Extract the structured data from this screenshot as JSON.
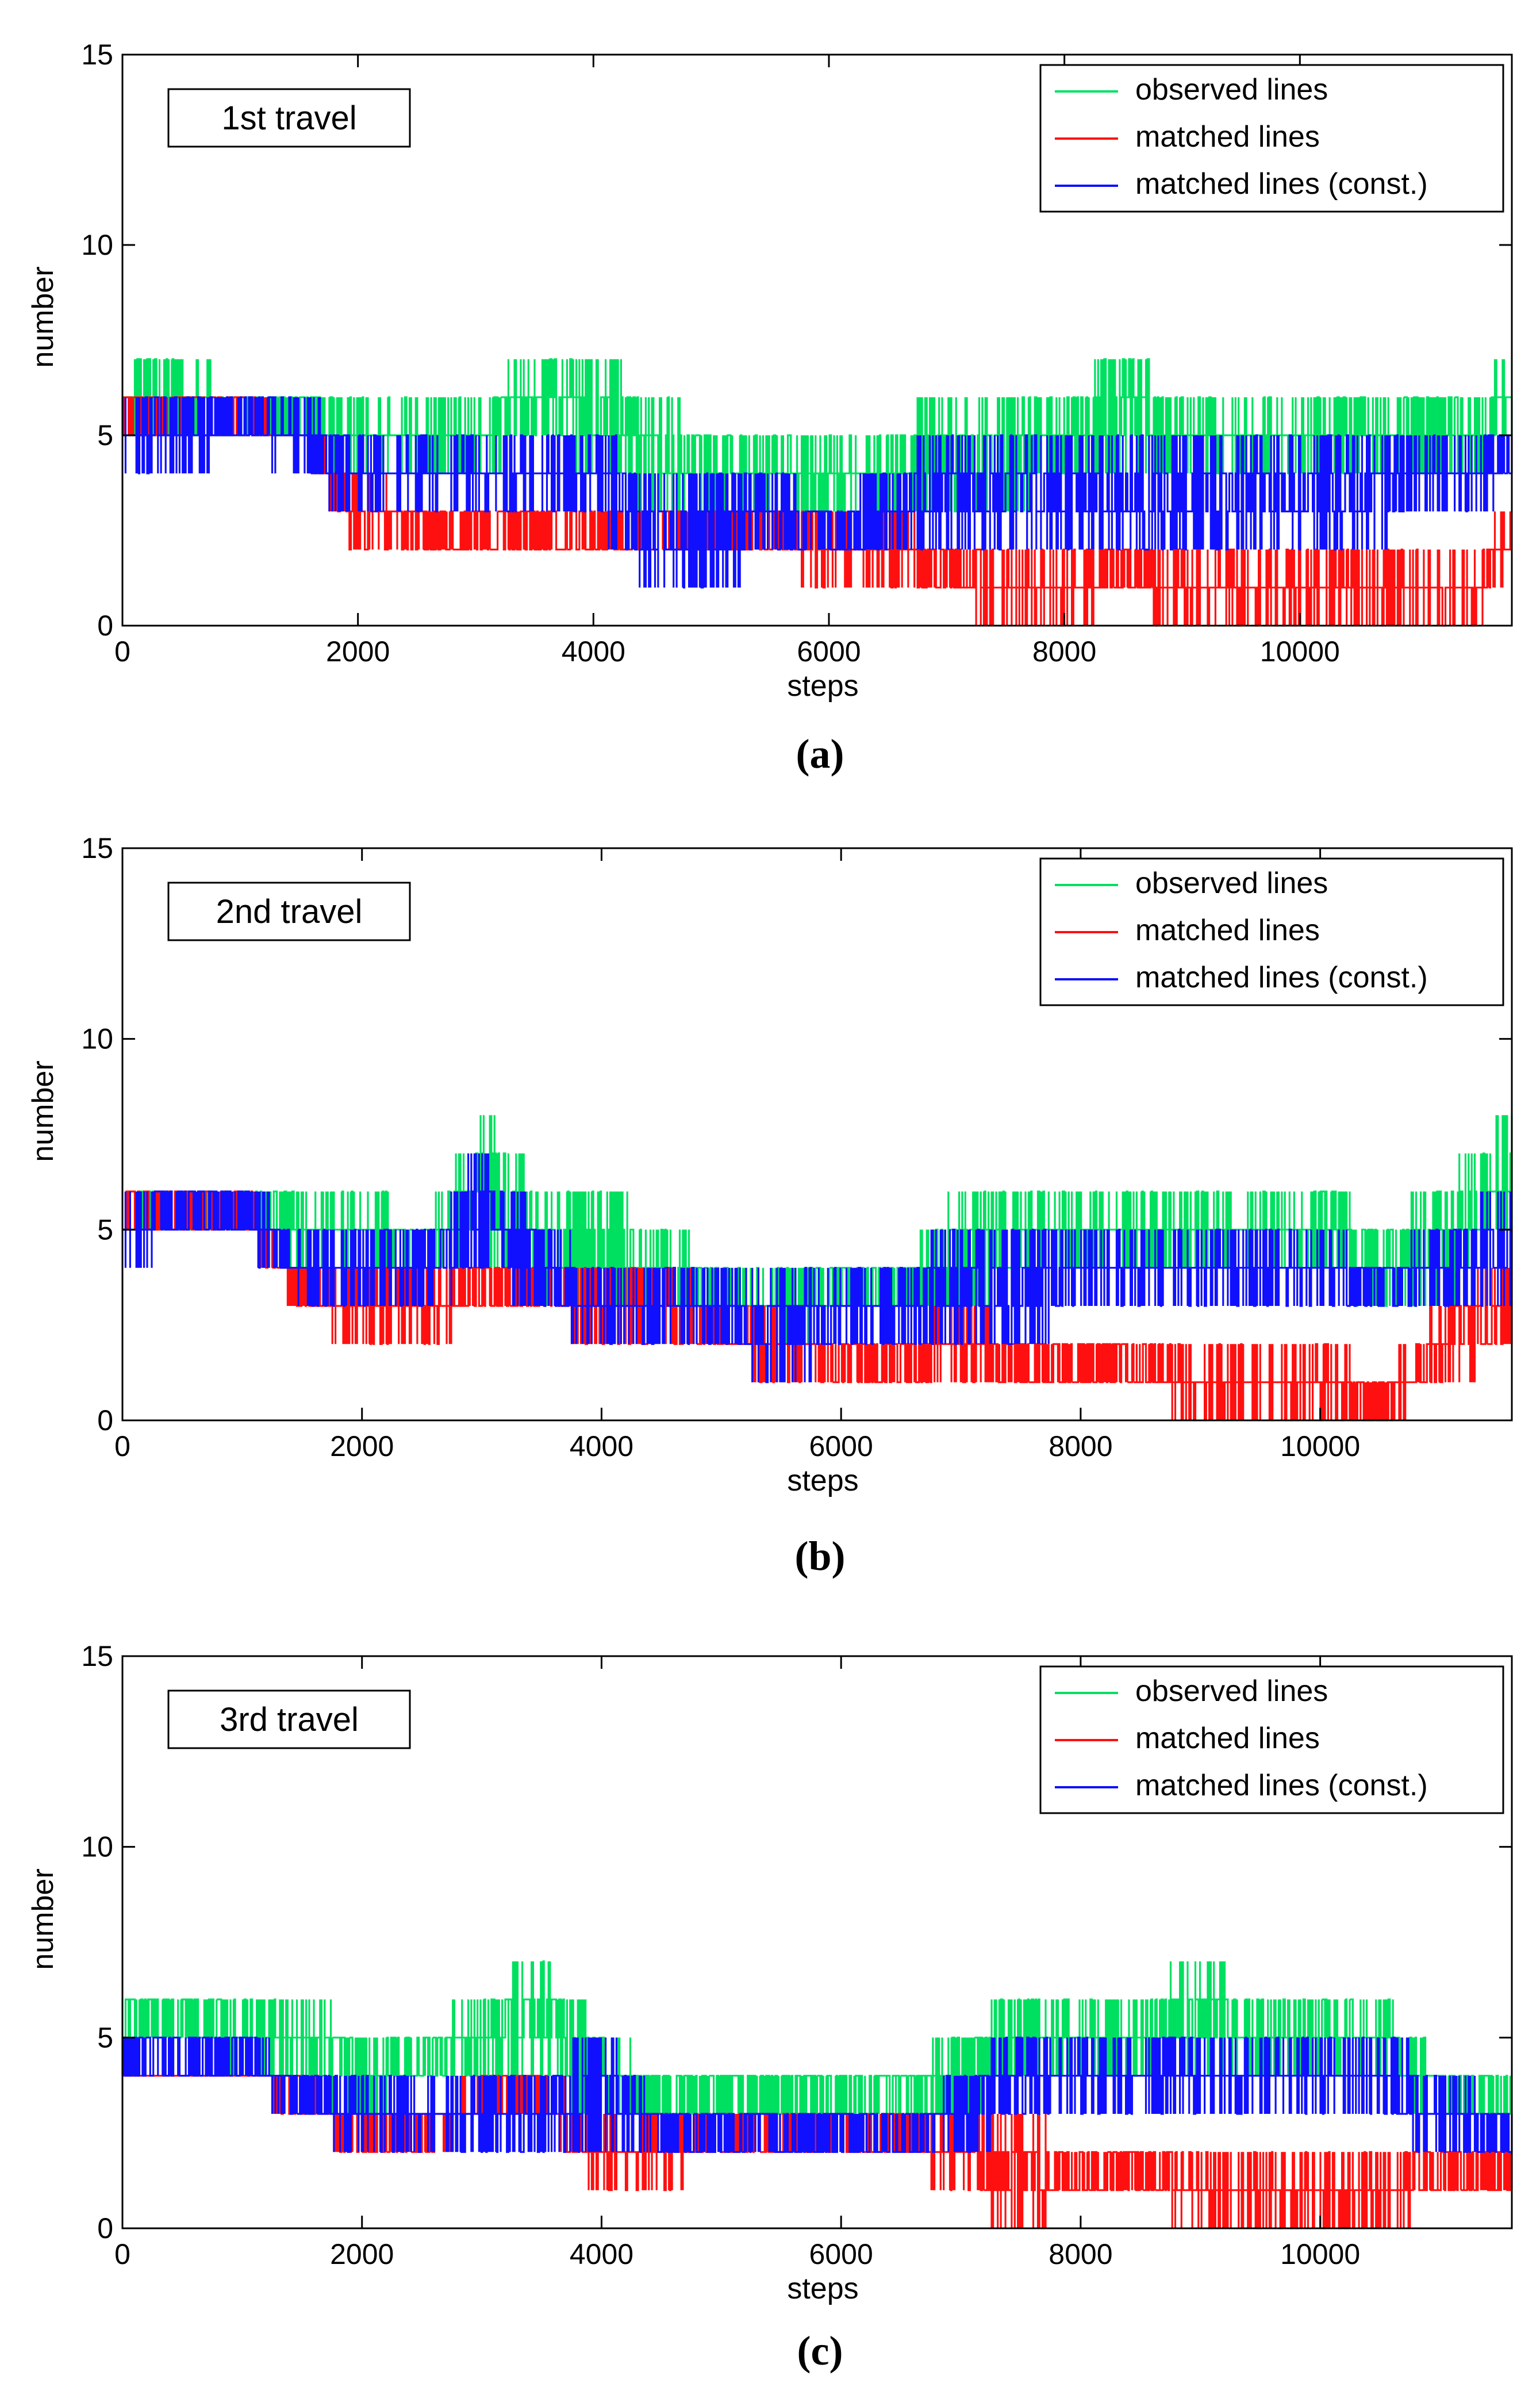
{
  "colors": {
    "observed": "#00e060",
    "matched": "#ff1010",
    "constrained": "#1010ff"
  },
  "chart_data": [
    {
      "type": "line",
      "tag": "1st travel",
      "caption": "(a)",
      "xlabel": "steps",
      "ylabel": "number",
      "xlim": [
        0,
        11800
      ],
      "ylim": [
        0,
        15
      ],
      "xticks": [
        0,
        2000,
        4000,
        6000,
        8000,
        10000
      ],
      "yticks": [
        0,
        5,
        10,
        15
      ],
      "legend_position": "top-right",
      "series": [
        {
          "name": "observed lines",
          "key": "observed",
          "x": [
            0,
            500,
            1000,
            1500,
            2000,
            2500,
            3000,
            3500,
            4000,
            4500,
            5000,
            5500,
            6000,
            6500,
            7000,
            7500,
            8000,
            8500,
            9000,
            9500,
            10000,
            10500,
            11000,
            11500,
            11800
          ],
          "low": [
            5,
            5,
            5,
            5,
            4,
            4,
            4,
            5,
            4,
            3,
            3,
            3,
            3,
            3,
            3,
            3,
            4,
            4,
            4,
            4,
            4,
            4,
            4,
            4,
            5
          ],
          "high": [
            7,
            7,
            6,
            6,
            6,
            6,
            6,
            7,
            7,
            6,
            5,
            5,
            5,
            5,
            6,
            6,
            6,
            7,
            6,
            6,
            6,
            6,
            6,
            6,
            7
          ]
        },
        {
          "name": "matched lines",
          "key": "matched",
          "x": [
            0,
            500,
            1000,
            1500,
            2000,
            2500,
            3000,
            3500,
            4000,
            4500,
            5000,
            5500,
            6000,
            6500,
            7000,
            7500,
            8000,
            8500,
            9000,
            9500,
            10000,
            10500,
            11000,
            11500,
            11800
          ],
          "low": [
            5,
            5,
            5,
            5,
            2,
            2,
            2,
            2,
            2,
            2,
            2,
            2,
            1,
            1,
            1,
            0,
            0,
            1,
            0,
            0,
            0,
            0,
            0,
            0,
            2
          ],
          "high": [
            6,
            6,
            6,
            5,
            4,
            3,
            3,
            3,
            3,
            3,
            3,
            3,
            3,
            3,
            2,
            2,
            2,
            2,
            2,
            2,
            2,
            2,
            2,
            2,
            3
          ]
        },
        {
          "name": "matched lines (const.)",
          "key": "constrained",
          "x": [
            0,
            500,
            1000,
            1500,
            2000,
            2500,
            3000,
            3500,
            4000,
            4500,
            5000,
            5500,
            6000,
            6500,
            7000,
            7500,
            8000,
            8500,
            9000,
            9500,
            10000,
            10500,
            11000,
            11500,
            11800
          ],
          "low": [
            4,
            4,
            5,
            4,
            3,
            3,
            3,
            3,
            3,
            1,
            1,
            2,
            2,
            2,
            2,
            2,
            2,
            2,
            2,
            2,
            2,
            2,
            3,
            3,
            4
          ],
          "high": [
            6,
            6,
            6,
            6,
            5,
            5,
            5,
            5,
            5,
            4,
            4,
            4,
            3,
            4,
            5,
            5,
            5,
            5,
            5,
            5,
            5,
            5,
            5,
            5,
            5
          ]
        }
      ]
    },
    {
      "type": "line",
      "tag": "2nd travel",
      "caption": "(b)",
      "xlabel": "steps",
      "ylabel": "number",
      "xlim": [
        0,
        11600
      ],
      "ylim": [
        0,
        15
      ],
      "xticks": [
        0,
        2000,
        4000,
        6000,
        8000,
        10000
      ],
      "yticks": [
        0,
        5,
        10,
        15
      ],
      "legend_position": "top-right",
      "series": [
        {
          "name": "observed lines",
          "key": "observed",
          "x": [
            0,
            500,
            1000,
            1500,
            2000,
            2500,
            3000,
            3500,
            4000,
            4500,
            5000,
            5500,
            6000,
            6500,
            7000,
            7500,
            8000,
            8500,
            9000,
            9500,
            10000,
            10500,
            11000,
            11600
          ],
          "low": [
            5,
            5,
            5,
            4,
            4,
            4,
            4,
            3,
            3,
            3,
            3,
            2,
            3,
            3,
            3,
            4,
            4,
            4,
            4,
            4,
            4,
            3,
            3,
            5
          ],
          "high": [
            6,
            6,
            6,
            6,
            6,
            5,
            8,
            6,
            6,
            5,
            4,
            4,
            4,
            4,
            6,
            6,
            6,
            6,
            6,
            6,
            6,
            5,
            6,
            8
          ]
        },
        {
          "name": "matched lines",
          "key": "matched",
          "x": [
            0,
            500,
            1000,
            1500,
            2000,
            2500,
            3000,
            3500,
            4000,
            4500,
            5000,
            5500,
            6000,
            6500,
            7000,
            7500,
            8000,
            8500,
            9000,
            9500,
            10000,
            10500,
            11000,
            11600
          ],
          "low": [
            5,
            5,
            5,
            3,
            2,
            2,
            3,
            3,
            2,
            2,
            2,
            1,
            1,
            1,
            1,
            1,
            1,
            1,
            0,
            0,
            0,
            0,
            1,
            2
          ],
          "high": [
            6,
            6,
            6,
            4,
            4,
            4,
            4,
            4,
            4,
            4,
            3,
            3,
            2,
            2,
            3,
            2,
            2,
            2,
            2,
            2,
            2,
            1,
            3,
            4
          ]
        },
        {
          "name": "matched lines (const.)",
          "key": "constrained",
          "x": [
            0,
            500,
            1000,
            1500,
            2000,
            2500,
            3000,
            3500,
            4000,
            4500,
            5000,
            5500,
            6000,
            6500,
            7000,
            7500,
            8000,
            8500,
            9000,
            9500,
            10000,
            10500,
            11000,
            11600
          ],
          "low": [
            4,
            5,
            5,
            3,
            3,
            3,
            4,
            3,
            2,
            2,
            2,
            1,
            2,
            2,
            2,
            2,
            3,
            3,
            3,
            3,
            3,
            3,
            3,
            3
          ],
          "high": [
            6,
            6,
            6,
            5,
            5,
            5,
            7,
            5,
            4,
            4,
            4,
            4,
            4,
            4,
            5,
            5,
            5,
            5,
            5,
            5,
            5,
            4,
            5,
            6
          ]
        }
      ]
    },
    {
      "type": "line",
      "tag": "3rd travel",
      "caption": "(c)",
      "xlabel": "steps",
      "ylabel": "number",
      "xlim": [
        0,
        11600
      ],
      "ylim": [
        0,
        15
      ],
      "xticks": [
        0,
        2000,
        4000,
        6000,
        8000,
        10000
      ],
      "yticks": [
        0,
        5,
        10,
        15
      ],
      "legend_position": "top-right",
      "series": [
        {
          "name": "observed lines",
          "key": "observed",
          "x": [
            0,
            500,
            1000,
            1500,
            2000,
            2500,
            3000,
            3500,
            4000,
            4500,
            5000,
            5500,
            6000,
            6500,
            7000,
            7500,
            8000,
            8500,
            9000,
            9500,
            10000,
            10500,
            11000,
            11600
          ],
          "low": [
            5,
            5,
            4,
            4,
            3,
            4,
            4,
            4,
            3,
            3,
            3,
            3,
            3,
            3,
            3,
            4,
            4,
            4,
            4,
            4,
            4,
            4,
            3,
            3
          ],
          "high": [
            6,
            6,
            6,
            6,
            5,
            5,
            6,
            7,
            5,
            4,
            4,
            4,
            4,
            4,
            5,
            6,
            6,
            6,
            7,
            6,
            6,
            6,
            4,
            4
          ]
        },
        {
          "name": "matched lines",
          "key": "matched",
          "x": [
            0,
            500,
            1000,
            1500,
            2000,
            2500,
            3000,
            3500,
            4000,
            4500,
            5000,
            5500,
            6000,
            6500,
            7000,
            7500,
            8000,
            8500,
            9000,
            9500,
            10000,
            10500,
            11000,
            11600
          ],
          "low": [
            4,
            4,
            4,
            3,
            2,
            2,
            3,
            3,
            1,
            1,
            2,
            2,
            2,
            2,
            1,
            0,
            1,
            1,
            0,
            0,
            0,
            0,
            1,
            1
          ],
          "high": [
            4,
            4,
            4,
            4,
            3,
            3,
            4,
            4,
            3,
            3,
            3,
            3,
            3,
            3,
            3,
            3,
            2,
            2,
            2,
            2,
            2,
            2,
            2,
            2
          ]
        },
        {
          "name": "matched lines (const.)",
          "key": "constrained",
          "x": [
            0,
            500,
            1000,
            1500,
            2000,
            2500,
            3000,
            3500,
            4000,
            4500,
            5000,
            5500,
            6000,
            6500,
            7000,
            7500,
            8000,
            8500,
            9000,
            9500,
            10000,
            10500,
            11000,
            11600
          ],
          "low": [
            4,
            4,
            4,
            3,
            2,
            2,
            2,
            2,
            2,
            2,
            2,
            2,
            2,
            2,
            2,
            3,
            3,
            3,
            3,
            3,
            3,
            3,
            2,
            2
          ],
          "high": [
            5,
            5,
            5,
            4,
            4,
            4,
            4,
            4,
            5,
            3,
            3,
            3,
            3,
            3,
            4,
            5,
            5,
            5,
            5,
            5,
            5,
            5,
            4,
            3
          ]
        }
      ]
    }
  ]
}
